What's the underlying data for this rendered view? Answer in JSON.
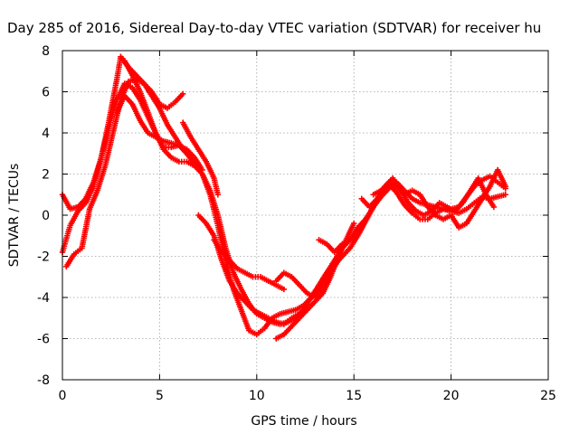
{
  "chart_data": {
    "type": "scatter",
    "title": "Day 285 of 2016, Sidereal Day-to-day VTEC variation (SDTVAR) for receiver hu",
    "xlabel": "GPS time / hours",
    "ylabel": "SDTVAR / TECUs",
    "xlim": [
      0,
      25
    ],
    "ylim": [
      -8,
      8
    ],
    "x_ticks": [
      0,
      5,
      10,
      15,
      20,
      25
    ],
    "y_ticks": [
      -8,
      -6,
      -4,
      -2,
      0,
      2,
      4,
      6,
      8
    ],
    "x_tick_labels": [
      "0",
      "5",
      "10",
      "15",
      "20",
      "25"
    ],
    "y_tick_labels": [
      "-8",
      "-6",
      "-4",
      "-2",
      "0",
      "2",
      "4",
      "6",
      "8"
    ],
    "grid": true,
    "marker": "+",
    "color": "#ff0000",
    "series": [
      {
        "x": [
          0.0,
          0.4,
          0.8,
          1.2,
          1.6,
          2.0,
          2.4,
          2.8,
          3.0,
          3.2,
          3.6,
          4.0,
          4.4,
          4.8,
          5.2,
          5.6,
          6.0,
          6.4,
          6.8,
          7.2,
          7.6,
          8.0,
          8.4,
          8.8,
          9.2,
          9.6,
          10.0,
          10.4,
          10.8,
          11.2,
          11.6,
          12.0,
          12.4,
          12.8,
          13.2,
          13.6,
          14.0,
          14.4,
          14.8,
          15.2,
          15.6,
          16.0,
          16.4,
          16.8,
          17.2,
          17.6,
          18.0,
          18.4,
          18.8,
          19.2,
          19.6,
          20.0,
          20.4,
          20.8,
          21.2,
          21.6,
          22.0,
          22.4,
          22.8
        ],
        "y": [
          -1.8,
          -0.5,
          0.2,
          0.6,
          1.4,
          2.8,
          4.6,
          6.6,
          7.7,
          7.5,
          6.8,
          6.0,
          5.0,
          4.0,
          3.3,
          3.3,
          3.4,
          3.0,
          2.5,
          2.0,
          1.0,
          -0.5,
          -2.2,
          -3.6,
          -4.6,
          -5.6,
          -5.8,
          -5.5,
          -5.0,
          -4.8,
          -4.7,
          -4.6,
          -4.4,
          -4.0,
          -3.4,
          -2.8,
          -2.2,
          -1.6,
          -1.2,
          -0.7,
          -0.2,
          0.4,
          1.0,
          1.5,
          1.1,
          0.5,
          0.1,
          -0.2,
          -0.2,
          0.1,
          0.3,
          0.2,
          0.1,
          0.3,
          0.6,
          0.9,
          0.8,
          0.9,
          1.0
        ]
      },
      {
        "x": [
          0.0,
          0.4,
          0.8,
          1.2,
          1.6,
          2.0,
          2.4,
          2.8,
          3.2,
          3.6,
          4.0,
          4.4,
          4.8,
          5.2,
          5.6,
          6.0,
          6.4,
          6.8,
          7.2,
          7.6,
          8.0,
          8.4,
          8.8,
          9.2,
          9.6,
          10.0,
          10.4,
          10.8,
          11.2,
          11.6,
          12.0,
          12.4,
          12.8,
          13.2,
          13.6,
          14.0,
          14.4,
          14.8,
          15.2,
          15.6,
          16.0,
          16.4,
          16.8,
          17.2,
          17.6,
          18.0,
          18.4,
          18.8,
          19.2,
          19.6,
          20.0,
          20.4,
          20.8,
          21.2,
          21.6,
          22.0,
          22.4,
          22.8
        ],
        "y": [
          1.0,
          0.3,
          0.4,
          0.8,
          1.6,
          2.8,
          4.3,
          5.6,
          6.4,
          6.2,
          5.6,
          4.8,
          4.0,
          3.2,
          2.8,
          2.6,
          2.6,
          2.4,
          2.0,
          1.2,
          0.0,
          -1.6,
          -2.8,
          -3.6,
          -4.3,
          -4.8,
          -5.0,
          -5.2,
          -5.3,
          -5.2,
          -5.0,
          -4.6,
          -4.0,
          -3.4,
          -2.8,
          -2.4,
          -2.0,
          -1.6,
          -1.0,
          -0.3,
          0.4,
          0.9,
          1.3,
          1.6,
          1.2,
          0.8,
          0.6,
          0.5,
          0.4,
          0.3,
          0.3,
          0.4,
          0.9,
          1.4,
          1.7,
          1.9,
          1.6,
          1.3
        ]
      },
      {
        "x": [
          0.2,
          0.6,
          1.0,
          1.4,
          1.8,
          2.2,
          2.6,
          3.0,
          3.4,
          3.8,
          4.2,
          4.6,
          5.0,
          5.4,
          5.8,
          6.2
        ],
        "y": [
          -2.5,
          -1.9,
          -1.6,
          0.3,
          1.2,
          2.4,
          4.0,
          5.6,
          6.5,
          6.6,
          6.4,
          6.0,
          5.4,
          5.2,
          5.5,
          5.9
        ]
      },
      {
        "x": [
          2.8,
          3.2,
          3.6,
          4.0,
          4.4,
          4.8,
          5.2,
          5.6,
          6.0,
          6.4,
          6.8,
          7.2
        ],
        "y": [
          5.0,
          5.8,
          5.4,
          4.6,
          4.0,
          3.8,
          3.6,
          3.5,
          3.4,
          3.2,
          2.8,
          2.2
        ]
      },
      {
        "x": [
          3.0,
          3.4,
          3.8,
          4.2,
          4.6,
          5.0,
          5.4,
          5.8,
          6.2,
          6.6,
          7.0
        ],
        "y": [
          7.7,
          7.2,
          6.8,
          6.4,
          5.8,
          5.2,
          4.4,
          3.8,
          3.2,
          2.8,
          2.4
        ]
      },
      {
        "x": [
          6.2,
          6.6,
          7.0,
          7.4,
          7.8,
          8.0
        ],
        "y": [
          4.5,
          3.8,
          3.2,
          2.6,
          1.8,
          1.0
        ]
      },
      {
        "x": [
          7.0,
          7.4,
          7.8,
          8.2,
          8.6,
          9.0,
          9.4,
          9.8,
          10.2,
          10.6,
          11.0,
          11.4,
          11.8,
          12.2,
          12.6
        ],
        "y": [
          0.0,
          -0.4,
          -1.0,
          -2.2,
          -3.2,
          -3.8,
          -4.2,
          -4.6,
          -4.8,
          -5.0,
          -5.2,
          -5.3,
          -5.0,
          -4.8,
          -4.6
        ]
      },
      {
        "x": [
          7.8,
          8.2,
          8.6,
          9.0,
          9.4,
          9.8,
          10.2,
          10.6,
          11.0,
          11.4
        ],
        "y": [
          -1.2,
          -1.8,
          -2.2,
          -2.6,
          -2.8,
          -3.0,
          -3.0,
          -3.2,
          -3.4,
          -3.6
        ]
      },
      {
        "x": [
          11.0,
          11.4,
          11.8,
          12.2,
          12.6,
          13.0,
          13.4,
          13.8,
          14.2
        ],
        "y": [
          -3.2,
          -2.8,
          -3.0,
          -3.4,
          -3.8,
          -4.0,
          -3.4,
          -2.8,
          -2.2
        ]
      },
      {
        "x": [
          11.0,
          11.4,
          11.8,
          12.2,
          12.6,
          13.0,
          13.4,
          13.8,
          14.2,
          14.6,
          15.0
        ],
        "y": [
          -6.0,
          -5.8,
          -5.4,
          -5.0,
          -4.6,
          -4.2,
          -3.8,
          -3.0,
          -2.0,
          -1.2,
          -0.4
        ]
      },
      {
        "x": [
          13.2,
          13.6,
          14.0,
          14.4,
          14.8,
          15.2,
          15.6
        ],
        "y": [
          -1.2,
          -1.4,
          -1.8,
          -1.4,
          -1.2,
          -0.6,
          -0.2
        ]
      },
      {
        "x": [
          15.4,
          15.8,
          16.2,
          16.6,
          17.0,
          17.4,
          17.8,
          18.2,
          18.6,
          19.0,
          19.4,
          19.8,
          20.2,
          20.6,
          21.0,
          21.4,
          21.8,
          22.2
        ],
        "y": [
          0.8,
          0.4,
          0.8,
          1.4,
          1.8,
          1.2,
          0.6,
          0.2,
          0.0,
          0.2,
          0.6,
          0.4,
          0.2,
          0.6,
          1.2,
          1.8,
          1.0,
          0.4
        ]
      },
      {
        "x": [
          16.0,
          16.4,
          16.8,
          17.2,
          17.6,
          18.0,
          18.4,
          18.8,
          19.2,
          19.6,
          20.0,
          20.4,
          20.8,
          21.2,
          21.6,
          22.0,
          22.4,
          22.8
        ],
        "y": [
          1.0,
          1.2,
          1.6,
          1.4,
          1.0,
          1.2,
          1.0,
          0.4,
          0.0,
          -0.2,
          0.0,
          -0.6,
          -0.4,
          0.2,
          0.8,
          1.4,
          2.2,
          1.4
        ]
      }
    ]
  }
}
